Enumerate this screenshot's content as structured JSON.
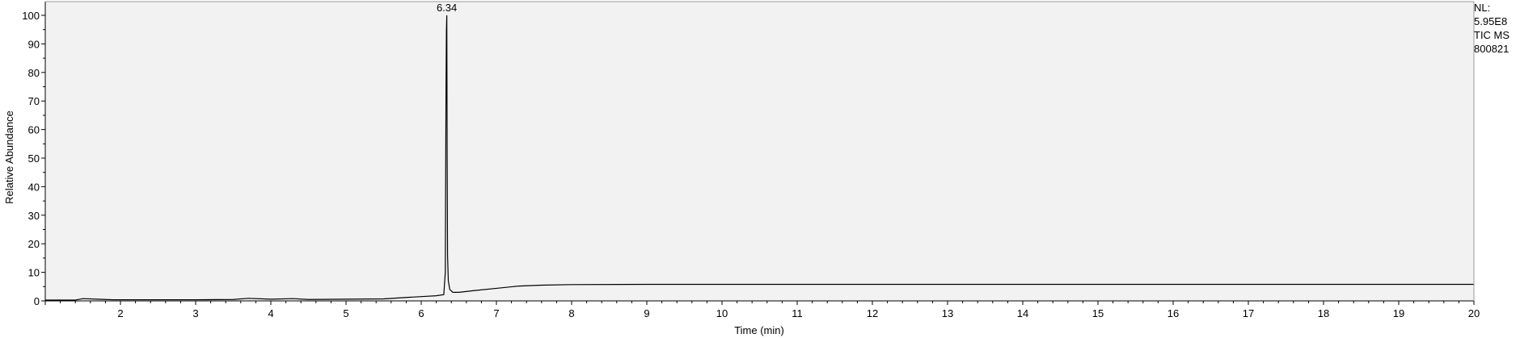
{
  "chart_data": {
    "type": "line",
    "title": "",
    "xlabel": "Time (min)",
    "ylabel": "Relative Abundance",
    "xlim": [
      1.0,
      20.0
    ],
    "ylim": [
      0,
      100
    ],
    "xticks": [
      2,
      3,
      4,
      5,
      6,
      7,
      8,
      9,
      10,
      11,
      12,
      13,
      14,
      15,
      16,
      17,
      18,
      19,
      20
    ],
    "yticks": [
      0,
      10,
      20,
      30,
      40,
      50,
      60,
      70,
      80,
      90,
      100
    ],
    "grid": false,
    "peak_label": "6.34",
    "peak_x": 6.34,
    "series": [
      {
        "x": [
          1.0,
          1.4,
          1.5,
          1.7,
          1.9,
          2.5,
          3.0,
          3.5,
          3.7,
          4.0,
          4.3,
          4.5,
          5.0,
          5.5,
          5.8,
          6.0,
          6.2,
          6.3,
          6.32,
          6.33,
          6.335,
          6.34,
          6.345,
          6.35,
          6.36,
          6.38,
          6.42,
          6.5,
          6.7,
          7.0,
          7.3,
          7.6,
          8.0,
          9.0,
          10.0,
          12.0,
          14.0,
          16.0,
          18.0,
          20.0
        ],
        "y": [
          0.3,
          0.3,
          0.8,
          0.6,
          0.4,
          0.4,
          0.4,
          0.5,
          0.9,
          0.6,
          0.8,
          0.5,
          0.6,
          0.7,
          1.2,
          1.5,
          1.8,
          2.2,
          10,
          76,
          95,
          100,
          50,
          16,
          7,
          4,
          3,
          3,
          3.6,
          4.4,
          5.2,
          5.5,
          5.7,
          5.8,
          5.8,
          5.8,
          5.8,
          5.8,
          5.8,
          5.8
        ]
      }
    ]
  },
  "annotations": {
    "nl_label": "NL:",
    "nl_value": "5.95E8",
    "scan_type": "TIC  MS",
    "file_name": "800821"
  }
}
